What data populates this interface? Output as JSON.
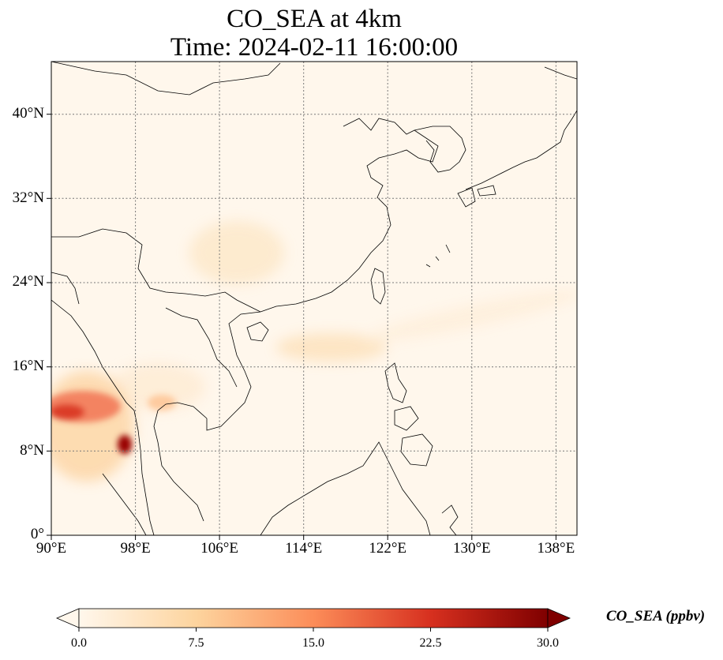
{
  "title": {
    "line1": "CO_SEA at 4km",
    "line2": "Time: 2024-02-11 16:00:00"
  },
  "map": {
    "lon_range": [
      90,
      140
    ],
    "lat_range": [
      0,
      45
    ],
    "lon_ticks": [
      "90°E",
      "98°E",
      "106°E",
      "114°E",
      "122°E",
      "130°E",
      "138°E"
    ],
    "lat_ticks": [
      "0°",
      "8°N",
      "16°N",
      "24°N",
      "32°N",
      "40°N"
    ],
    "gridlines": true,
    "background_color": "#fff7ec",
    "coastline_color": "#000000"
  },
  "colorbar": {
    "label": "CO_SEA (ppbv)",
    "ticks": [
      "0.0",
      "7.5",
      "15.0",
      "22.5",
      "30.0"
    ],
    "range": [
      0,
      30
    ],
    "extend": "both",
    "colormap": "OrRd",
    "colors": [
      "#fff7ec",
      "#fdd49e",
      "#fc8d59",
      "#d7301f",
      "#7f0000"
    ]
  }
}
